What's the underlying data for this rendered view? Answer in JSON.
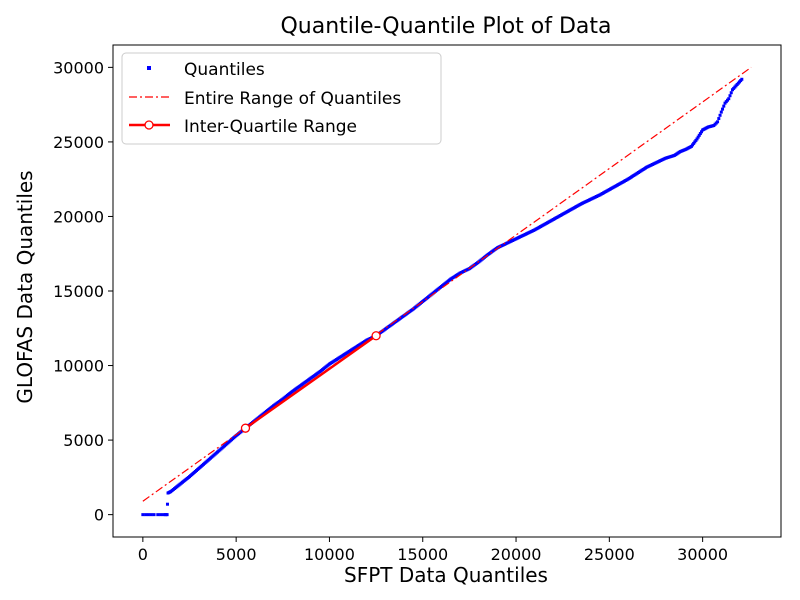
{
  "chart_data": {
    "type": "scatter",
    "title": "Quantile-Quantile Plot of Data",
    "xlabel": "SFPT Data Quantiles",
    "ylabel": "GLOFAS Data Quantiles",
    "xlim": [
      -1600,
      34200
    ],
    "ylim": [
      -1500,
      31500
    ],
    "xticks": [
      0,
      5000,
      10000,
      15000,
      20000,
      25000,
      30000
    ],
    "yticks": [
      0,
      5000,
      10000,
      15000,
      20000,
      25000,
      30000
    ],
    "grid": false,
    "legend": {
      "placement": "top-left",
      "entries": [
        "Quantiles",
        "Entire Range of Quantiles",
        "Inter-Quartile Range"
      ]
    },
    "colors": {
      "quantiles": "#0000ff",
      "range_line": "#ff0000",
      "iqr_line": "#ff0000",
      "iqr_marker_fill": "#ffffff"
    },
    "series": [
      {
        "name": "Quantiles",
        "kind": "points",
        "points": [
          [
            0,
            0
          ],
          [
            150,
            0
          ],
          [
            300,
            0
          ],
          [
            450,
            0
          ],
          [
            600,
            0
          ],
          [
            800,
            0
          ],
          [
            950,
            0
          ],
          [
            1100,
            0
          ],
          [
            1200,
            0
          ],
          [
            1250,
            0
          ],
          [
            1300,
            0
          ],
          [
            1320,
            700
          ],
          [
            1350,
            1450
          ],
          [
            1500,
            1550
          ],
          [
            1700,
            1750
          ],
          [
            2000,
            2050
          ],
          [
            2500,
            2550
          ],
          [
            3000,
            3100
          ],
          [
            3500,
            3650
          ],
          [
            4000,
            4200
          ],
          [
            4500,
            4750
          ],
          [
            5000,
            5300
          ],
          [
            5500,
            5800
          ],
          [
            6000,
            6300
          ],
          [
            6500,
            6800
          ],
          [
            7000,
            7300
          ],
          [
            7500,
            7750
          ],
          [
            8000,
            8250
          ],
          [
            8500,
            8700
          ],
          [
            9000,
            9150
          ],
          [
            9500,
            9600
          ],
          [
            10000,
            10100
          ],
          [
            10500,
            10500
          ],
          [
            11000,
            10900
          ],
          [
            11500,
            11300
          ],
          [
            12000,
            11700
          ],
          [
            12500,
            12000
          ],
          [
            13000,
            12450
          ],
          [
            13500,
            12900
          ],
          [
            14000,
            13350
          ],
          [
            14500,
            13800
          ],
          [
            15000,
            14300
          ],
          [
            15500,
            14800
          ],
          [
            16000,
            15300
          ],
          [
            16500,
            15800
          ],
          [
            17000,
            16200
          ],
          [
            17500,
            16500
          ],
          [
            18000,
            16950
          ],
          [
            18500,
            17450
          ],
          [
            19000,
            17900
          ],
          [
            19500,
            18200
          ],
          [
            20000,
            18500
          ],
          [
            20500,
            18800
          ],
          [
            21000,
            19100
          ],
          [
            21500,
            19450
          ],
          [
            22000,
            19800
          ],
          [
            22500,
            20150
          ],
          [
            23000,
            20500
          ],
          [
            23500,
            20850
          ],
          [
            24000,
            21150
          ],
          [
            24500,
            21450
          ],
          [
            25000,
            21800
          ],
          [
            25500,
            22150
          ],
          [
            26000,
            22500
          ],
          [
            26500,
            22900
          ],
          [
            27000,
            23300
          ],
          [
            27500,
            23600
          ],
          [
            28000,
            23900
          ],
          [
            28500,
            24100
          ],
          [
            28800,
            24350
          ],
          [
            29100,
            24500
          ],
          [
            29400,
            24700
          ],
          [
            29700,
            25200
          ],
          [
            30000,
            25800
          ],
          [
            30300,
            26000
          ],
          [
            30600,
            26100
          ],
          [
            30800,
            26350
          ],
          [
            31000,
            27000
          ],
          [
            31200,
            27600
          ],
          [
            31400,
            27900
          ],
          [
            31600,
            28500
          ],
          [
            32100,
            29200
          ]
        ]
      },
      {
        "name": "Entire Range of Quantiles",
        "kind": "dashdot-line",
        "points": [
          [
            0,
            900
          ],
          [
            32600,
            30000
          ]
        ]
      },
      {
        "name": "Inter-Quartile Range",
        "kind": "solid-line-with-markers",
        "points": [
          [
            5500,
            5800
          ],
          [
            12500,
            12000
          ]
        ]
      }
    ]
  }
}
